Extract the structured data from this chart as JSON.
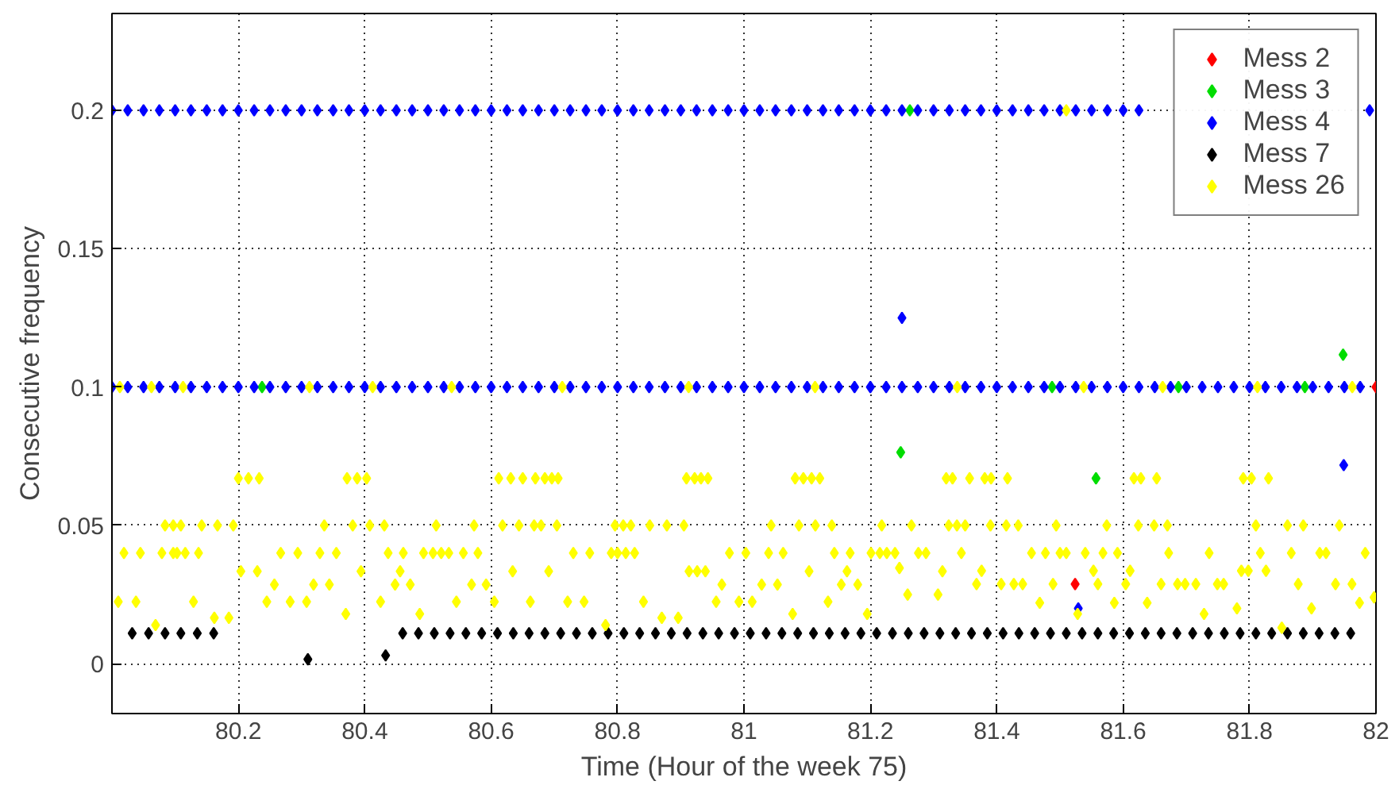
{
  "chart_data": {
    "type": "scatter",
    "xlabel": "Time (Hour of the week 75)",
    "ylabel": "Consecutive frequency",
    "xlim": [
      80,
      82
    ],
    "ylim": [
      -0.018,
      0.235
    ],
    "xticks": [
      80.2,
      80.4,
      80.6,
      80.8,
      81,
      81.2,
      81.4,
      81.6,
      81.8,
      82
    ],
    "yticks": [
      0,
      0.05,
      0.1,
      0.15,
      0.2
    ],
    "grid": true,
    "legend": "top right",
    "marker": "diamond",
    "series": [
      {
        "name": "Mess 2",
        "color": "#ff0000",
        "x": [
          81.524,
          82.0
        ],
        "values": [
          0.0288,
          0.1
        ]
      },
      {
        "name": "Mess 3",
        "color": "#00dd00",
        "x": [
          81.248,
          81.557,
          81.948,
          81.2625,
          80.2375,
          81.4875,
          81.6875,
          81.8875
        ],
        "values": [
          0.0764,
          0.067,
          0.1117,
          0.2,
          0.1,
          0.1,
          0.1,
          0.1
        ]
      },
      {
        "name": "Mess 4",
        "color": "#0000ff",
        "x": [
          80,
          80.025,
          80.05,
          80.075,
          80.1,
          80.125,
          80.15,
          80.175,
          80.2,
          80.225,
          80.25,
          80.275,
          80.3,
          80.325,
          80.35,
          80.375,
          80.4,
          80.425,
          80.45,
          80.475,
          80.5,
          80.525,
          80.55,
          80.575,
          80.6,
          80.625,
          80.65,
          80.675,
          80.7,
          80.725,
          80.75,
          80.775,
          80.8,
          80.825,
          80.85,
          80.875,
          80.9,
          80.925,
          80.95,
          80.975,
          81,
          81.025,
          81.05,
          81.075,
          81.1,
          81.125,
          81.15,
          81.175,
          81.2,
          81.225,
          81.25,
          81.275,
          81.3,
          81.325,
          81.35,
          81.375,
          81.4,
          81.425,
          81.45,
          81.475,
          81.5,
          81.525,
          81.55,
          81.575,
          81.6,
          81.625,
          81.99,
          80,
          80.025,
          80.05,
          80.075,
          80.1,
          80.125,
          80.15,
          80.175,
          80.2,
          80.225,
          80.25,
          80.275,
          80.3,
          80.325,
          80.35,
          80.375,
          80.4,
          80.425,
          80.45,
          80.475,
          80.5,
          80.525,
          80.55,
          80.575,
          80.6,
          80.625,
          80.65,
          80.675,
          80.7,
          80.725,
          80.75,
          80.775,
          80.8,
          80.825,
          80.85,
          80.875,
          80.9,
          80.925,
          80.95,
          80.975,
          81,
          81.025,
          81.05,
          81.075,
          81.1,
          81.125,
          81.15,
          81.175,
          81.2,
          81.225,
          81.25,
          81.275,
          81.3,
          81.325,
          81.35,
          81.375,
          81.4,
          81.425,
          81.45,
          81.475,
          81.5,
          81.525,
          81.55,
          81.575,
          81.6,
          81.625,
          81.65,
          81.675,
          81.7,
          81.725,
          81.75,
          81.775,
          81.8,
          81.825,
          81.85,
          81.875,
          81.9,
          81.925,
          81.95,
          81.975,
          81.25,
          81.949,
          81.529
        ],
        "values": [
          0.2,
          0.2,
          0.2,
          0.2,
          0.2,
          0.2,
          0.2,
          0.2,
          0.2,
          0.2,
          0.2,
          0.2,
          0.2,
          0.2,
          0.2,
          0.2,
          0.2,
          0.2,
          0.2,
          0.2,
          0.2,
          0.2,
          0.2,
          0.2,
          0.2,
          0.2,
          0.2,
          0.2,
          0.2,
          0.2,
          0.2,
          0.2,
          0.2,
          0.2,
          0.2,
          0.2,
          0.2,
          0.2,
          0.2,
          0.2,
          0.2,
          0.2,
          0.2,
          0.2,
          0.2,
          0.2,
          0.2,
          0.2,
          0.2,
          0.2,
          0.2,
          0.2,
          0.2,
          0.2,
          0.2,
          0.2,
          0.2,
          0.2,
          0.2,
          0.2,
          0.2,
          0.2,
          0.2,
          0.2,
          0.2,
          0.2,
          0.2,
          0.1,
          0.1,
          0.1,
          0.1,
          0.1,
          0.1,
          0.1,
          0.1,
          0.1,
          0.1,
          0.1,
          0.1,
          0.1,
          0.1,
          0.1,
          0.1,
          0.1,
          0.1,
          0.1,
          0.1,
          0.1,
          0.1,
          0.1,
          0.1,
          0.1,
          0.1,
          0.1,
          0.1,
          0.1,
          0.1,
          0.1,
          0.1,
          0.1,
          0.1,
          0.1,
          0.1,
          0.1,
          0.1,
          0.1,
          0.1,
          0.1,
          0.1,
          0.1,
          0.1,
          0.1,
          0.1,
          0.1,
          0.1,
          0.1,
          0.1,
          0.1,
          0.1,
          0.1,
          0.1,
          0.1,
          0.1,
          0.1,
          0.1,
          0.1,
          0.1,
          0.1,
          0.1,
          0.1,
          0.1,
          0.1,
          0.1,
          0.1,
          0.1,
          0.1,
          0.1,
          0.1,
          0.1,
          0.1,
          0.1,
          0.1,
          0.1,
          0.1,
          0.1,
          0.1,
          0.1,
          0.125,
          0.0718,
          0.02
        ]
      },
      {
        "name": "Mess 7",
        "color": "#000000",
        "x": [
          80.032,
          80.058,
          80.084,
          80.109,
          80.135,
          80.161,
          80.31,
          80.433,
          80.46,
          80.485,
          80.51,
          80.535,
          80.56,
          80.585,
          80.61,
          80.635,
          80.66,
          80.685,
          80.71,
          80.735,
          80.76,
          80.785,
          80.81,
          80.835,
          80.86,
          80.885,
          80.91,
          80.935,
          80.96,
          80.985,
          81.01,
          81.035,
          81.06,
          81.085,
          81.11,
          81.135,
          81.16,
          81.185,
          81.21,
          81.235,
          81.26,
          81.285,
          81.31,
          81.335,
          81.36,
          81.385,
          81.41,
          81.435,
          81.46,
          81.485,
          81.51,
          81.535,
          81.56,
          81.585,
          81.61,
          81.635,
          81.66,
          81.685,
          81.71,
          81.735,
          81.76,
          81.785,
          81.81,
          81.835,
          81.86,
          81.885,
          81.91,
          81.935,
          81.96
        ],
        "values": [
          0.011,
          0.011,
          0.011,
          0.011,
          0.011,
          0.011,
          0.0016,
          0.003,
          0.011,
          0.011,
          0.011,
          0.011,
          0.011,
          0.011,
          0.011,
          0.011,
          0.011,
          0.011,
          0.011,
          0.011,
          0.011,
          0.011,
          0.011,
          0.011,
          0.011,
          0.011,
          0.011,
          0.011,
          0.011,
          0.011,
          0.011,
          0.011,
          0.011,
          0.011,
          0.011,
          0.011,
          0.011,
          0.011,
          0.011,
          0.011,
          0.011,
          0.011,
          0.011,
          0.011,
          0.011,
          0.011,
          0.011,
          0.011,
          0.011,
          0.011,
          0.011,
          0.011,
          0.011,
          0.011,
          0.011,
          0.011,
          0.011,
          0.011,
          0.011,
          0.011,
          0.011,
          0.011,
          0.011,
          0.011,
          0.011,
          0.011,
          0.011,
          0.011,
          0.011
        ]
      },
      {
        "name": "Mess 26",
        "color": "#ffff00",
        "x": [
          80.01,
          80.019,
          80.038,
          80.045,
          80.069,
          80.079,
          80.084,
          80.097,
          80.097,
          80.109,
          80.103,
          80.116,
          80.129,
          80.137,
          80.142,
          80.162,
          80.167,
          80.185,
          80.192,
          80.2,
          80.216,
          80.233,
          80.204,
          80.23,
          80.245,
          80.257,
          80.267,
          80.282,
          80.294,
          80.308,
          80.319,
          80.329,
          80.336,
          80.344,
          80.355,
          80.37,
          80.372,
          80.388,
          80.403,
          80.381,
          80.394,
          80.408,
          80.425,
          80.431,
          80.437,
          80.448,
          80.456,
          80.461,
          80.472,
          80.487,
          80.493,
          80.508,
          80.521,
          80.533,
          80.513,
          80.545,
          80.556,
          80.569,
          80.573,
          80.579,
          80.592,
          80.605,
          80.612,
          80.631,
          80.65,
          80.618,
          80.634,
          80.644,
          80.67,
          80.685,
          80.696,
          80.706,
          80.668,
          80.679,
          80.704,
          80.662,
          80.691,
          80.721,
          80.73,
          80.747,
          80.756,
          80.781,
          80.79,
          80.8,
          80.813,
          80.827,
          80.796,
          80.809,
          80.821,
          80.841,
          80.851,
          80.87,
          80.878,
          80.896,
          80.905,
          80.909,
          80.922,
          80.932,
          80.943,
          80.913,
          80.926,
          80.939,
          80.956,
          80.965,
          80.977,
          80.992,
          81.003,
          81.013,
          81.028,
          81.039,
          81.043,
          81.053,
          81.062,
          81.077,
          81.081,
          81.094,
          81.107,
          81.12,
          81.087,
          81.113,
          81.139,
          81.103,
          81.133,
          81.143,
          81.154,
          81.163,
          81.168,
          81.18,
          81.195,
          81.201,
          81.215,
          81.226,
          81.239,
          81.218,
          81.246,
          81.259,
          81.265,
          81.276,
          81.288,
          81.307,
          81.314,
          81.32,
          81.33,
          81.324,
          81.337,
          81.35,
          81.344,
          81.357,
          81.381,
          81.391,
          81.417,
          81.39,
          81.415,
          81.434,
          81.376,
          81.368,
          81.407,
          81.427,
          81.441,
          81.455,
          81.477,
          81.5,
          81.51,
          81.468,
          81.489,
          81.494,
          81.528,
          81.54,
          81.553,
          81.56,
          81.568,
          81.574,
          81.586,
          81.591,
          81.604,
          81.617,
          81.628,
          81.653,
          81.624,
          81.649,
          81.67,
          81.611,
          81.638,
          81.66,
          81.672,
          81.686,
          81.698,
          81.715,
          81.728,
          81.736,
          81.749,
          81.759,
          81.78,
          81.787,
          81.798,
          81.79,
          81.803,
          81.83,
          81.81,
          81.817,
          81.826,
          81.851,
          81.86,
          81.866,
          81.877,
          81.885,
          81.898,
          81.911,
          81.921,
          81.936,
          81.942,
          81.962,
          81.974,
          81.983,
          81.997,
          80.0125,
          80.0625,
          80.1125,
          80.3125,
          80.4125,
          80.5375,
          80.7125,
          80.9125,
          81.1125,
          81.3375,
          81.5375,
          81.6625,
          81.8125,
          81.9625,
          81.51
        ],
        "values": [
          0.0224,
          0.04,
          0.0224,
          0.04,
          0.014,
          0.04,
          0.05,
          0.04,
          0.05,
          0.05,
          0.04,
          0.04,
          0.0224,
          0.04,
          0.05,
          0.0166,
          0.05,
          0.0166,
          0.05,
          0.067,
          0.067,
          0.067,
          0.0334,
          0.0334,
          0.0224,
          0.0286,
          0.04,
          0.0224,
          0.04,
          0.0224,
          0.0286,
          0.04,
          0.05,
          0.0286,
          0.04,
          0.018,
          0.067,
          0.067,
          0.067,
          0.05,
          0.0334,
          0.05,
          0.0224,
          0.05,
          0.04,
          0.0286,
          0.0334,
          0.04,
          0.0286,
          0.018,
          0.04,
          0.04,
          0.04,
          0.04,
          0.05,
          0.0224,
          0.04,
          0.0286,
          0.05,
          0.04,
          0.0286,
          0.0224,
          0.067,
          0.067,
          0.067,
          0.05,
          0.0334,
          0.05,
          0.067,
          0.067,
          0.067,
          0.067,
          0.05,
          0.05,
          0.05,
          0.0224,
          0.0334,
          0.0224,
          0.04,
          0.0224,
          0.04,
          0.014,
          0.04,
          0.04,
          0.04,
          0.04,
          0.05,
          0.05,
          0.05,
          0.0224,
          0.05,
          0.0166,
          0.05,
          0.0166,
          0.05,
          0.067,
          0.067,
          0.067,
          0.067,
          0.0334,
          0.0334,
          0.0334,
          0.0224,
          0.0286,
          0.04,
          0.0224,
          0.04,
          0.0224,
          0.0286,
          0.04,
          0.05,
          0.0286,
          0.04,
          0.018,
          0.067,
          0.067,
          0.067,
          0.067,
          0.05,
          0.05,
          0.05,
          0.0334,
          0.0224,
          0.04,
          0.0286,
          0.0334,
          0.04,
          0.0286,
          0.018,
          0.04,
          0.04,
          0.04,
          0.04,
          0.05,
          0.0346,
          0.025,
          0.05,
          0.04,
          0.04,
          0.025,
          0.0334,
          0.067,
          0.067,
          0.05,
          0.05,
          0.05,
          0.04,
          0.067,
          0.067,
          0.067,
          0.067,
          0.05,
          0.05,
          0.05,
          0.0336,
          0.0288,
          0.0288,
          0.0288,
          0.0288,
          0.04,
          0.04,
          0.04,
          0.04,
          0.022,
          0.0288,
          0.05,
          0.018,
          0.04,
          0.0336,
          0.0288,
          0.04,
          0.05,
          0.022,
          0.04,
          0.0288,
          0.067,
          0.067,
          0.067,
          0.05,
          0.05,
          0.05,
          0.0336,
          0.022,
          0.0288,
          0.04,
          0.0288,
          0.0288,
          0.0288,
          0.018,
          0.04,
          0.0288,
          0.0288,
          0.02,
          0.0336,
          0.0336,
          0.067,
          0.067,
          0.067,
          0.05,
          0.04,
          0.0336,
          0.013,
          0.05,
          0.04,
          0.0288,
          0.05,
          0.02,
          0.04,
          0.04,
          0.0288,
          0.05,
          0.0288,
          0.022,
          0.04,
          0.024,
          0.1,
          0.1,
          0.1,
          0.1,
          0.1,
          0.1,
          0.1,
          0.1,
          0.1,
          0.1,
          0.1,
          0.1,
          0.1,
          0.1,
          0.2
        ]
      }
    ]
  }
}
